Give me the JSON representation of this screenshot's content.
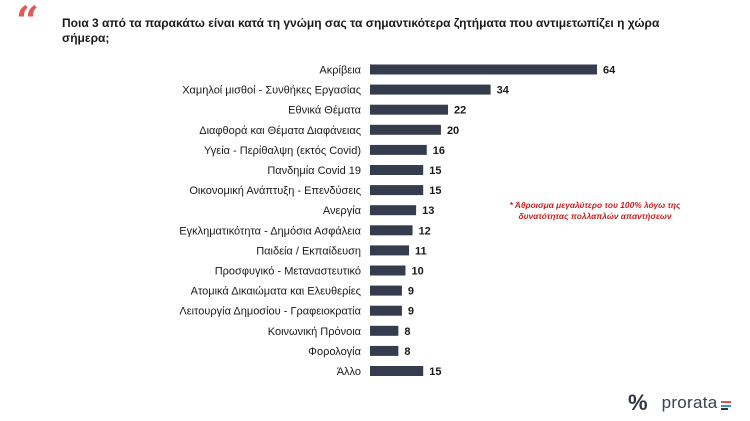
{
  "header": {
    "quote_glyph": "“",
    "question": "Ποια 3 από τα παρακάτω είναι κατά τη γνώμη σας τα σημαντικότερα ζητήματα που αντιμετωπίζει η χώρα σήμερα;"
  },
  "note": "* Άθροισμα μεγαλύτερο του 100% λόγω της δυνατότητας πολλαπλών απαντήσεων",
  "logo": {
    "mark": "%",
    "name": "prorata",
    "bar_colors": [
      "#e8514a",
      "#3b8ed8",
      "#2f3545"
    ]
  },
  "colors": {
    "bar": "#353c4e",
    "accent": "#e05a5a",
    "note": "#cc1f1f",
    "label": "#1a1a1a"
  },
  "chart_data": {
    "type": "bar",
    "orientation": "horizontal",
    "categories": [
      "Ακρίβεια",
      "Χαμηλοί μισθοί - Συνθήκες Εργασίας",
      "Εθνικά Θέματα",
      "Διαφθορά και Θέματα Διαφάνειας",
      "Υγεία - Περίθαλψη (εκτός Covid)",
      "Πανδημία Covid 19",
      "Οικονομική Ανάπτυξη - Επενδύσεις",
      "Ανεργία",
      "Εγκληματικότητα - Δημόσια Ασφάλεια",
      "Παιδεία / Εκπαίδευση",
      "Προσφυγικό - Μεταναστευτικό",
      "Ατομικά Δικαιώματα και Ελευθερίες",
      "Λειτουργία Δημοσίου - Γραφειοκρατία",
      "Κοινωνική Πρόνοια",
      "Φορολογία",
      "Άλλο"
    ],
    "values": [
      64,
      34,
      22,
      20,
      16,
      15,
      15,
      13,
      12,
      11,
      10,
      9,
      9,
      8,
      8,
      15
    ],
    "title": "",
    "xlabel": "",
    "ylabel": "",
    "xlim": [
      0,
      64
    ],
    "grid": false,
    "legend": "none",
    "data_labels": true
  }
}
